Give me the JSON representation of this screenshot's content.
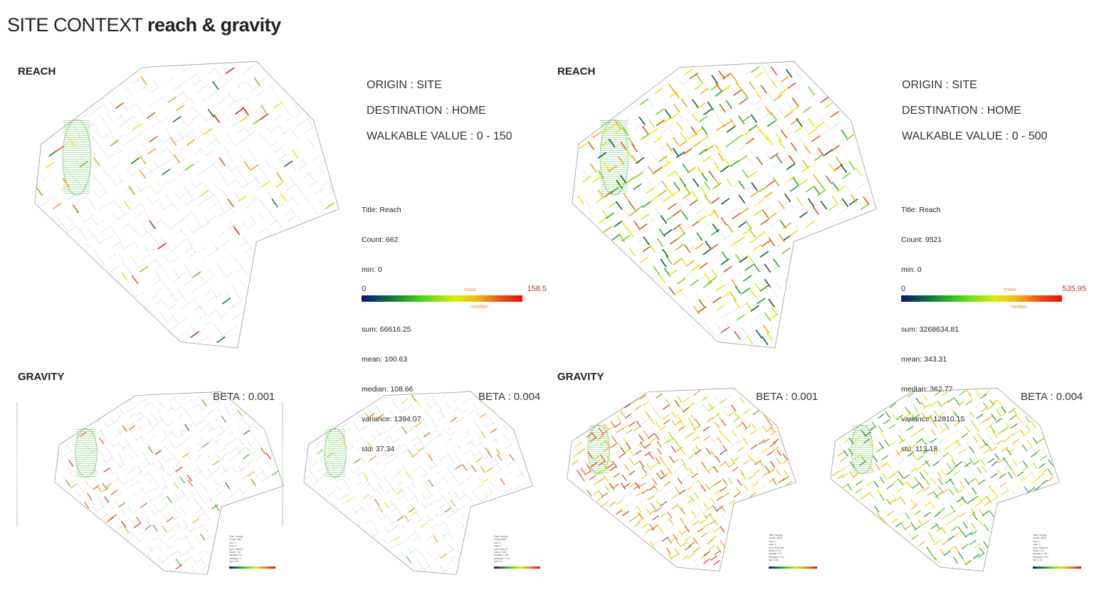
{
  "title": {
    "light": "SITE CONTEXT",
    "bold": "reach & gravity"
  },
  "reach_panels": [
    {
      "label": "REACH",
      "origin": "ORIGIN : SITE",
      "destination": "DESTINATION : HOME",
      "walkable": "WALKABLE VALUE : 0 - 150",
      "stats": [
        "Title: Reach",
        "Count: 662",
        "min: 0",
        "max: 158.5",
        "sum: 66616.25",
        "mean: 100.63",
        "median: 108.66",
        "variance: 1394.07",
        "std: 37.34"
      ],
      "legend": {
        "min": "0",
        "max": "158.5",
        "mean": "mean",
        "median": "median"
      },
      "colors": [
        "#1d7a2e",
        "#7cc51f",
        "#f1e40b",
        "#f5a21b",
        "#e45c19",
        "#d8261a"
      ]
    },
    {
      "label": "REACH",
      "origin": "ORIGIN : SITE",
      "destination": "DESTINATION : HOME",
      "walkable": "WALKABLE VALUE : 0 - 500",
      "stats": [
        "Title: Reach",
        "Count: 9521",
        "min: 0",
        "max: 535.95",
        "sum: 3268634.81",
        "mean: 343.31",
        "median: 362.77",
        "variance: 12810.15",
        "std: 113.18"
      ],
      "legend": {
        "min": "0",
        "max": "535.95",
        "mean": "mean",
        "median": "median"
      },
      "colors": [
        "#0f5a3a",
        "#22a82a",
        "#7cd11c",
        "#d6ec12",
        "#f4e10e",
        "#f2a81a",
        "#e0551a"
      ]
    }
  ],
  "gravity_panels": [
    {
      "label": "GRAVITY",
      "maps": [
        {
          "beta": "BETA : 0.001",
          "colors": [
            "#e25a1a",
            "#d8281a",
            "#f0a21b",
            "#3cae2a"
          ]
        },
        {
          "beta": "BETA : 0.004",
          "colors": [
            "#f1e20d",
            "#f0a41b",
            "#e26a1a",
            "#9bd21c"
          ]
        }
      ]
    },
    {
      "label": "GRAVITY",
      "maps": [
        {
          "beta": "BETA : 0.001",
          "colors": [
            "#e0641a",
            "#d8361a",
            "#f0a01b",
            "#f3d10e",
            "#bcdc16"
          ]
        },
        {
          "beta": "BETA : 0.004",
          "colors": [
            "#2eaa2a",
            "#6fc71e",
            "#c4e214",
            "#f2e10e",
            "#f2b21a",
            "#1f8f30"
          ]
        }
      ]
    }
  ],
  "colors": {
    "street": "#bdbdbd",
    "park": "#7fc77a",
    "boundary": "#9a9a9a"
  }
}
